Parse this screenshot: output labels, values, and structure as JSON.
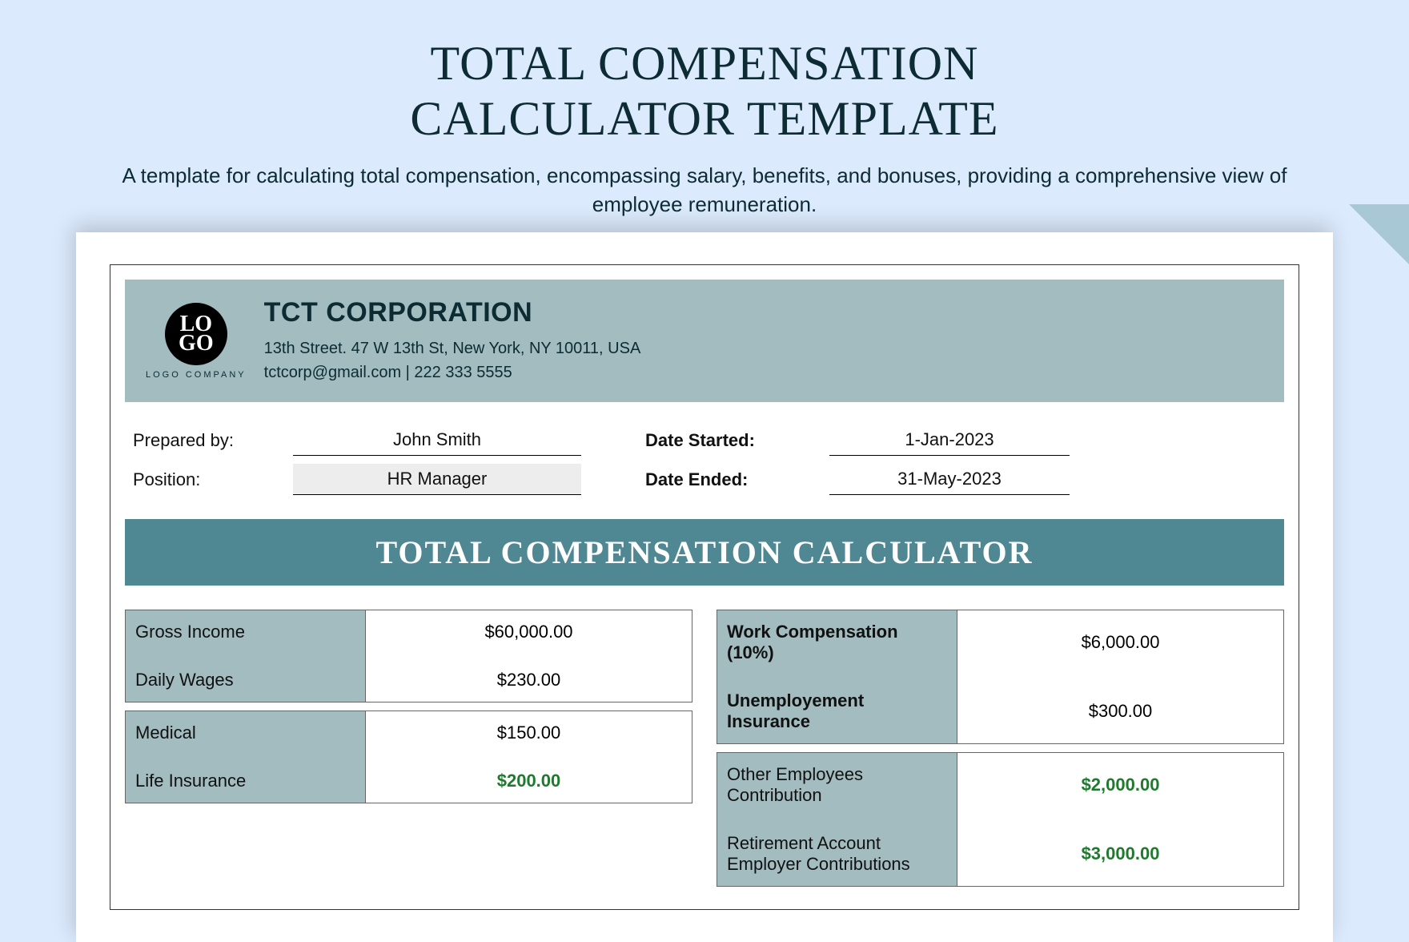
{
  "header": {
    "title_line1": "TOTAL COMPENSATION",
    "title_line2": "CALCULATOR TEMPLATE",
    "subtitle": "A template for calculating total compensation, encompassing salary, benefits, and bonuses, providing a comprehensive view of employee remuneration."
  },
  "company": {
    "logo_text_top": "LO",
    "logo_text_bot": "GO",
    "logo_caption": "LOGO COMPANY",
    "name": "TCT CORPORATION",
    "address": "13th Street. 47 W 13th St, New York, NY 10011, USA",
    "contact": "tctcorp@gmail.com | 222 333 5555"
  },
  "meta": {
    "prepared_by_label": "Prepared by:",
    "prepared_by_value": "John Smith",
    "position_label": "Position:",
    "position_value": "HR Manager",
    "date_started_label": "Date Started:",
    "date_started_value": "1-Jan-2023",
    "date_ended_label": "Date Ended:",
    "date_ended_value": "31-May-2023"
  },
  "section_title": "TOTAL COMPENSATION CALCULATOR",
  "left_block1": {
    "r1_label": "Gross Income",
    "r1_value": "$60,000.00",
    "r2_label": "Daily Wages",
    "r2_value": "$230.00"
  },
  "left_block2": {
    "r1_label": "Medical",
    "r1_value": "$150.00",
    "r2_label": "Life Insurance",
    "r2_value": "$200.00"
  },
  "right_block1": {
    "r1_label": "Work Compensation (10%)",
    "r1_value": "$6,000.00",
    "r2_label": "Unemployement Insurance",
    "r2_value": "$300.00"
  },
  "right_block2": {
    "r1_label": "Other Employees Contribution",
    "r1_value": "$2,000.00",
    "r2_label": "Retirement Account Employer Contributions",
    "r2_value": "$3,000.00"
  },
  "colors": {
    "page_bg": "#dbeafd",
    "banner_bg": "#a2bcbf",
    "section_bg": "#4f8893",
    "text_dark": "#0c2b33",
    "green": "#1f7a2e"
  }
}
